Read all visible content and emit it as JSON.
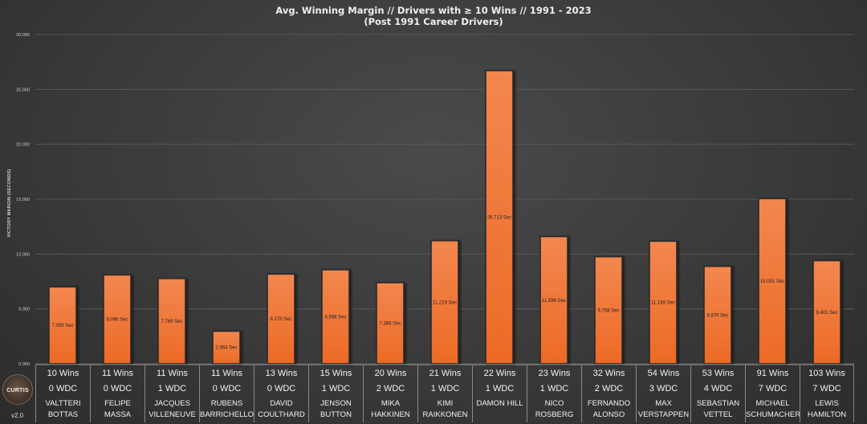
{
  "chart_data": {
    "type": "bar",
    "title": "Avg. Winning Margin // Drivers with ≥ 10 Wins // 1991 - 2023",
    "subtitle": "(Post 1991 Career Drivers)",
    "ylabel": "VICTORY MARGIN (SECONDS)",
    "xlabel": "",
    "ylim": [
      0,
      30
    ],
    "yticks": [
      "0.000",
      "5.000",
      "10.000",
      "15.000",
      "20.000",
      "25.000",
      "30.000"
    ],
    "grid": true,
    "bar_color": "#ec6a26",
    "categories": [
      "Valtteri Bottas",
      "Felipe Massa",
      "Jacques Villeneuve",
      "Rubens Barrichello",
      "David Coulthard",
      "Jenson Button",
      "Mika Hakkinen",
      "Kimi Raikkonen",
      "Damon Hill",
      "Nico Rosberg",
      "Fernando Alonso",
      "Max Verstappen",
      "Sebastian Vettel",
      "Michael Schumacher",
      "Lewis Hamilton"
    ],
    "values": [
      7.009,
      8.096,
      7.769,
      2.964,
      8.175,
      8.568,
      7.388,
      11.219,
      26.713,
      11.596,
      9.758,
      11.169,
      8.879,
      15.051,
      9.401
    ],
    "data_labels": [
      "7.009 Sec",
      "8.096 Sec",
      "7.769 Sec",
      "2.964 Sec",
      "8.175 Sec",
      "8.568 Sec",
      "7.388 Sec",
      "11.219 Sec",
      "26.713 Sec",
      "11.596 Sec",
      "9.758 Sec",
      "11.169 Sec",
      "8.879 Sec",
      "15.051 Sec",
      "9.401 Sec"
    ],
    "table": [
      {
        "wins": "10 Wins",
        "wdc": "0 WDC",
        "name": [
          "Valtteri Bottas"
        ]
      },
      {
        "wins": "11 Wins",
        "wdc": "0 WDC",
        "name": [
          "Felipe Massa"
        ]
      },
      {
        "wins": "11 Wins",
        "wdc": "1 WDC",
        "name": [
          "Jacques",
          "Villeneuve"
        ]
      },
      {
        "wins": "11 Wins",
        "wdc": "0 WDC",
        "name": [
          "Rubens",
          "Barrichello"
        ]
      },
      {
        "wins": "13 Wins",
        "wdc": "0 WDC",
        "name": [
          "David",
          "Coulthard"
        ]
      },
      {
        "wins": "15 Wins",
        "wdc": "1 WDC",
        "name": [
          "Jenson Button"
        ]
      },
      {
        "wins": "20 Wins",
        "wdc": "2 WDC",
        "name": [
          "Mika Hakkinen"
        ]
      },
      {
        "wins": "21 Wins",
        "wdc": "1 WDC",
        "name": [
          "Kimi Raikkonen"
        ]
      },
      {
        "wins": "22 Wins",
        "wdc": "1 WDC",
        "name": [
          "Damon Hill"
        ]
      },
      {
        "wins": "23 Wins",
        "wdc": "1 WDC",
        "name": [
          "Nico Rosberg"
        ]
      },
      {
        "wins": "32 Wins",
        "wdc": "2 WDC",
        "name": [
          "Fernando",
          "Alonso"
        ]
      },
      {
        "wins": "54 Wins",
        "wdc": "3 WDC",
        "name": [
          "Max",
          "Verstappen"
        ]
      },
      {
        "wins": "53 Wins",
        "wdc": "4 WDC",
        "name": [
          "Sebastian",
          "Vettel"
        ]
      },
      {
        "wins": "91 Wins",
        "wdc": "7 WDC",
        "name": [
          "Michael",
          "Schumacher"
        ]
      },
      {
        "wins": "103 Wins",
        "wdc": "7 WDC",
        "name": [
          "Lewis",
          "Hamilton"
        ]
      }
    ]
  },
  "logo": {
    "text": "CURTIS"
  },
  "version": "v2.0"
}
